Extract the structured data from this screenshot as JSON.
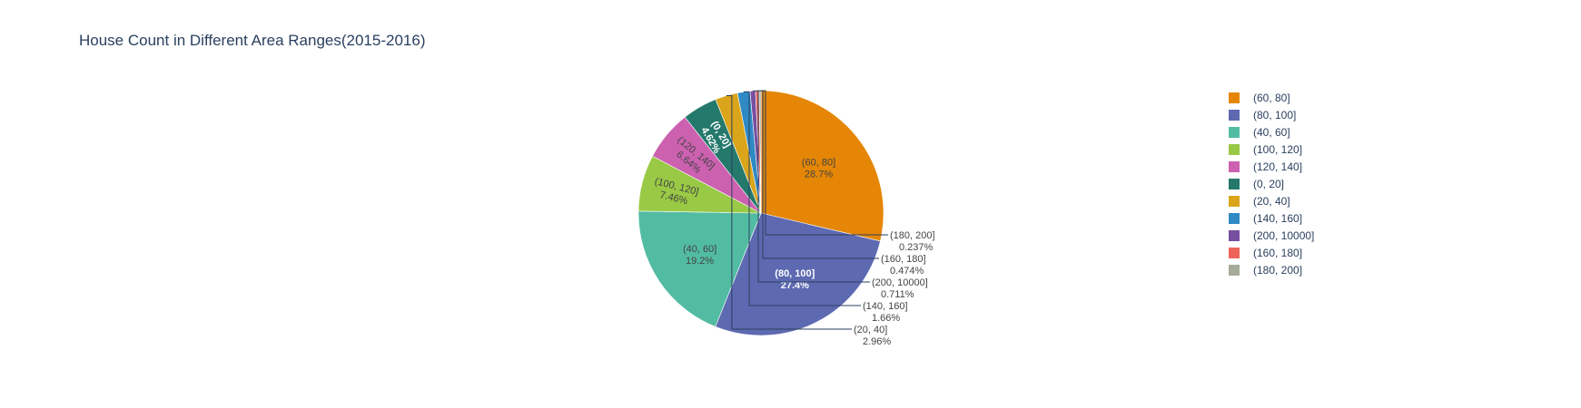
{
  "chart_data": {
    "type": "pie",
    "title": "House Count in Different Area Ranges(2015-2016)",
    "direction": "clockwise",
    "start": "12 o'clock",
    "legend_position": "right",
    "slices": [
      {
        "label": "(60, 80]",
        "pct_text": "28.7%",
        "percent": 28.7,
        "color": "#E58606"
      },
      {
        "label": "(80, 100]",
        "pct_text": "27.4%",
        "percent": 27.4,
        "color": "#5D69B1"
      },
      {
        "label": "(40, 60]",
        "pct_text": "19.2%",
        "percent": 19.2,
        "color": "#52BCA3"
      },
      {
        "label": "(100, 120]",
        "pct_text": "7.46%",
        "percent": 7.46,
        "color": "#99C945"
      },
      {
        "label": "(120, 140]",
        "pct_text": "6.64%",
        "percent": 6.64,
        "color": "#CC61B0"
      },
      {
        "label": "(0, 20]",
        "pct_text": "4.62%",
        "percent": 4.62,
        "color": "#24796C"
      },
      {
        "label": "(20, 40]",
        "pct_text": "2.96%",
        "percent": 2.96,
        "color": "#DAA51B"
      },
      {
        "label": "(140, 160]",
        "pct_text": "1.66%",
        "percent": 1.66,
        "color": "#2F8AC4"
      },
      {
        "label": "(200, 10000]",
        "pct_text": "0.711%",
        "percent": 0.711,
        "color": "#764E9F"
      },
      {
        "label": "(160, 180]",
        "pct_text": "0.474%",
        "percent": 0.474,
        "color": "#ED645A"
      },
      {
        "label": "(180, 200]",
        "pct_text": "0.237%",
        "percent": 0.237,
        "color": "#A5AA99"
      }
    ]
  }
}
